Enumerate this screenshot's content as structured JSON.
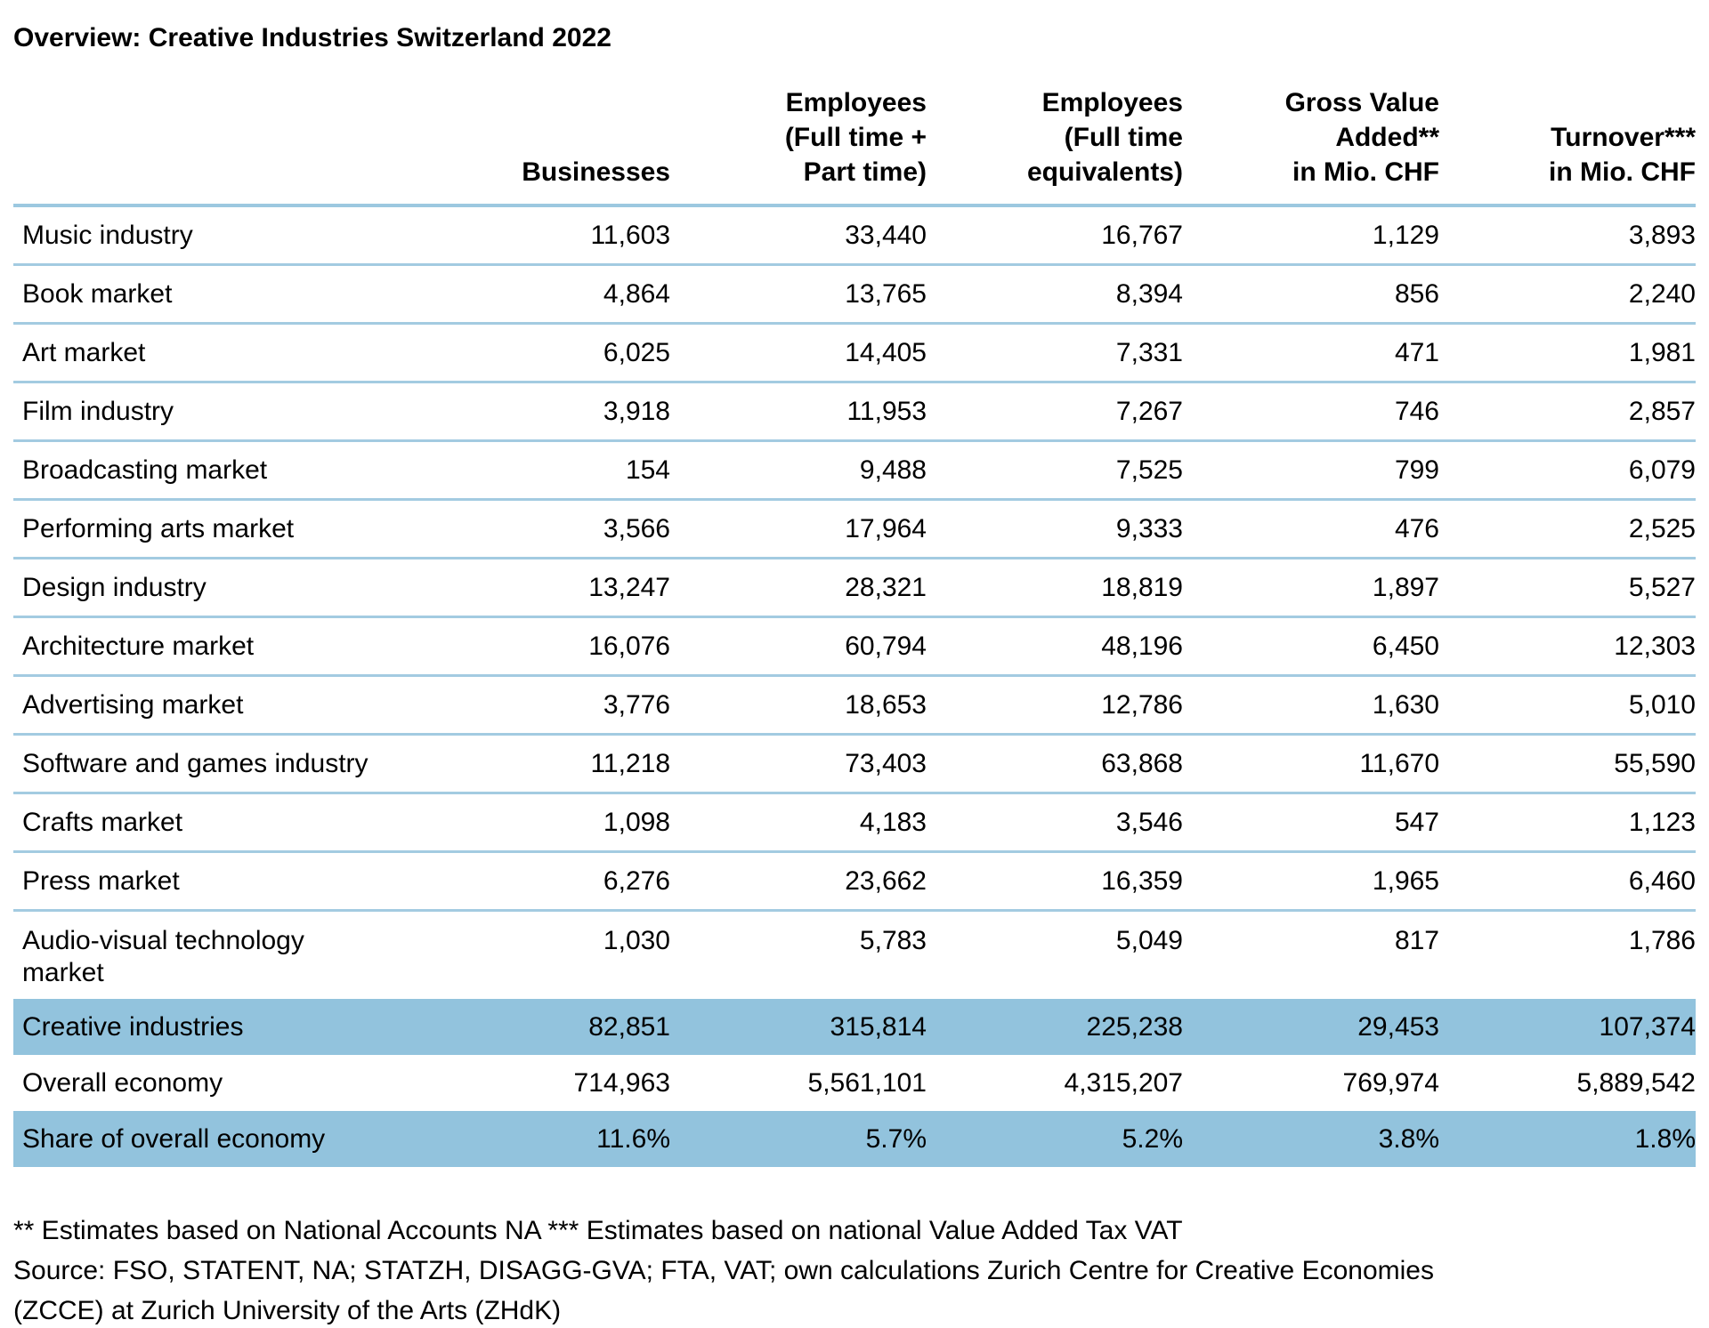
{
  "title": "Overview: Creative Industries Switzerland 2022",
  "table": {
    "columns": [
      "",
      "Businesses",
      "Employees\n(Full time +\nPart time)",
      "Employees\n(Full time\nequivalents)",
      "Gross Value\nAdded**\nin Mio. CHF",
      "Turnover***\nin Mio. CHF"
    ],
    "rows": [
      {
        "label": "Music industry",
        "values": [
          "11,603",
          "33,440",
          "16,767",
          "1,129",
          "3,893"
        ],
        "highlight": false
      },
      {
        "label": "Book market",
        "values": [
          "4,864",
          "13,765",
          "8,394",
          "856",
          "2,240"
        ],
        "highlight": false
      },
      {
        "label": "Art market",
        "values": [
          "6,025",
          "14,405",
          "7,331",
          "471",
          "1,981"
        ],
        "highlight": false
      },
      {
        "label": "Film industry",
        "values": [
          "3,918",
          "11,953",
          "7,267",
          "746",
          "2,857"
        ],
        "highlight": false
      },
      {
        "label": "Broadcasting market",
        "values": [
          "154",
          "9,488",
          "7,525",
          "799",
          "6,079"
        ],
        "highlight": false
      },
      {
        "label": "Performing arts market",
        "values": [
          "3,566",
          "17,964",
          "9,333",
          "476",
          "2,525"
        ],
        "highlight": false
      },
      {
        "label": "Design industry",
        "values": [
          "13,247",
          "28,321",
          "18,819",
          "1,897",
          "5,527"
        ],
        "highlight": false
      },
      {
        "label": "Architecture market",
        "values": [
          "16,076",
          "60,794",
          "48,196",
          "6,450",
          "12,303"
        ],
        "highlight": false
      },
      {
        "label": "Advertising market",
        "values": [
          "3,776",
          "18,653",
          "12,786",
          "1,630",
          "5,010"
        ],
        "highlight": false
      },
      {
        "label": "Software and games industry",
        "values": [
          "11,218",
          "73,403",
          "63,868",
          "11,670",
          "55,590"
        ],
        "highlight": false
      },
      {
        "label": "Crafts market",
        "values": [
          "1,098",
          "4,183",
          "3,546",
          "547",
          "1,123"
        ],
        "highlight": false
      },
      {
        "label": "Press market",
        "values": [
          "6,276",
          "23,662",
          "16,359",
          "1,965",
          "6,460"
        ],
        "highlight": false
      },
      {
        "label": "Audio-visual technology\nmarket",
        "values": [
          "1,030",
          "5,783",
          "5,049",
          "817",
          "1,786"
        ],
        "highlight": false
      },
      {
        "label": "Creative industries",
        "values": [
          "82,851",
          "315,814",
          "225,238",
          "29,453",
          "107,374"
        ],
        "highlight": true
      },
      {
        "label": "Overall economy",
        "values": [
          "714,963",
          "5,561,101",
          "4,315,207",
          "769,974",
          "5,889,542"
        ],
        "highlight": false
      },
      {
        "label": "Share of overall economy",
        "values": [
          "11.6%",
          "5.7%",
          "5.2%",
          "3.8%",
          "1.8%"
        ],
        "highlight": true
      }
    ]
  },
  "footnotes": [
    "** Estimates based on National Accounts NA *** Estimates based on national Value Added Tax VAT",
    "Source: FSO, STATENT, NA; STATZH, DISAGG-GVA; FTA, VAT; own calculations Zurich Centre for Creative Economies",
    "(ZCCE) at Zurich University of the Arts (ZHdK)"
  ],
  "colors": {
    "highlight_row": "#92C3DD",
    "rule_line": "#A3CBE1",
    "text": "#000000"
  }
}
